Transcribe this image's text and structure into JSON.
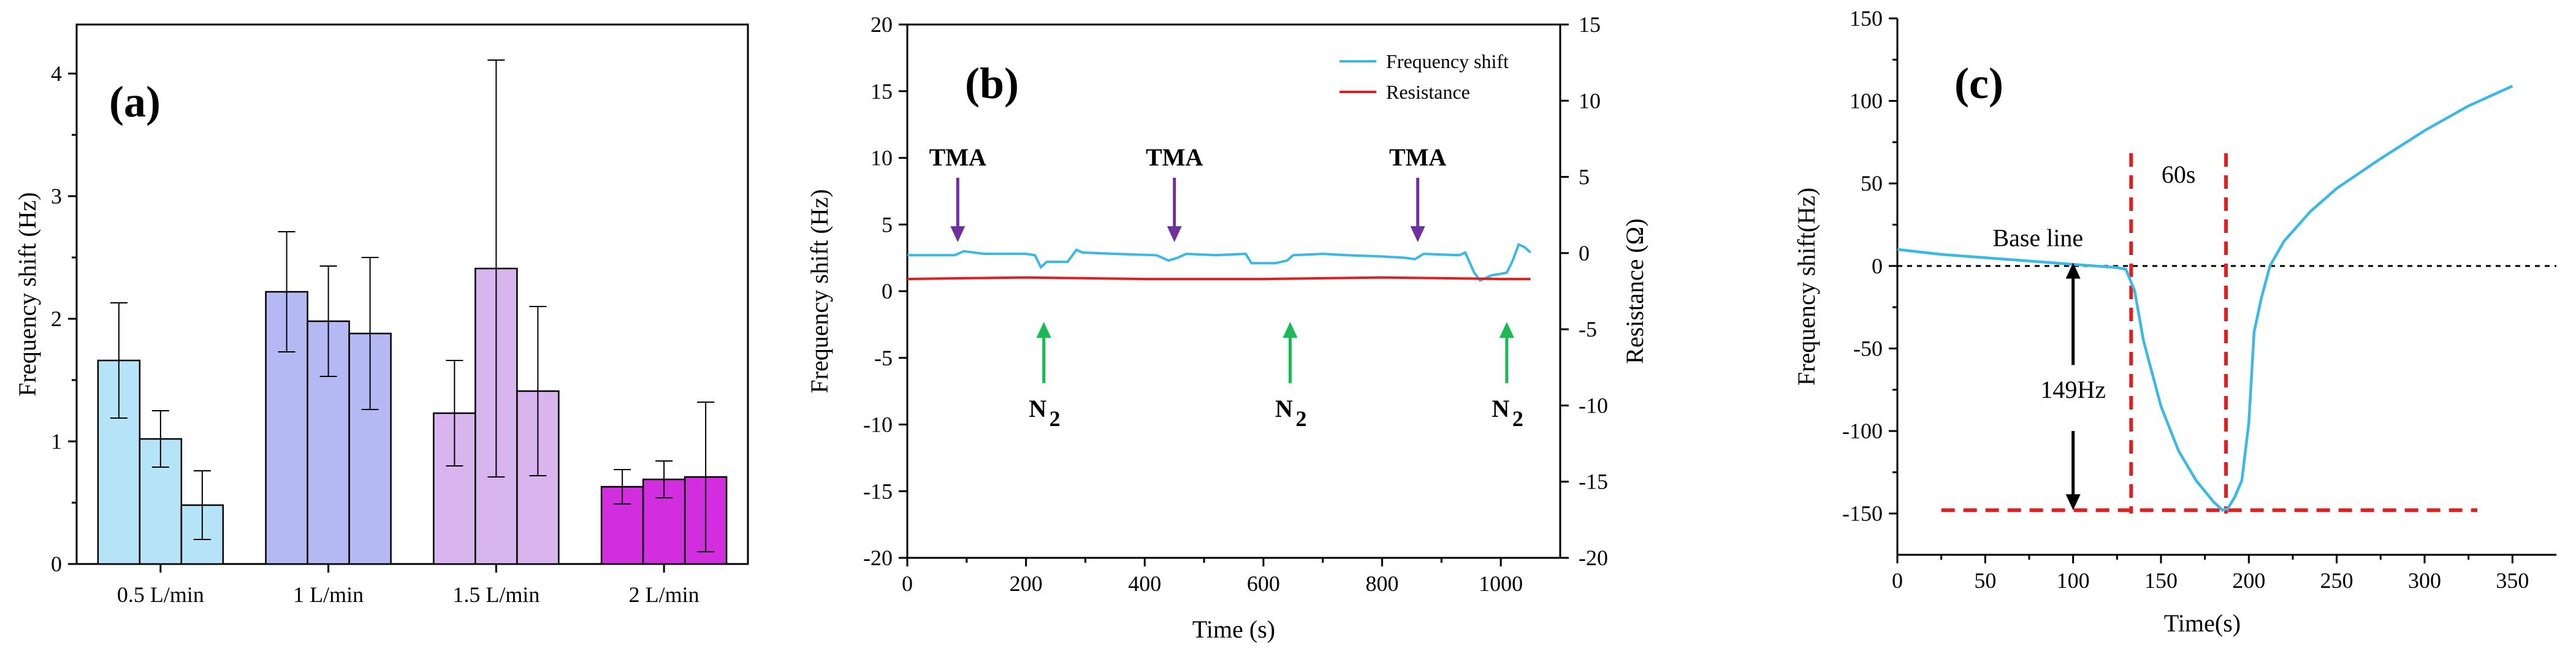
{
  "chart_data": [
    {
      "panel": "a",
      "type": "bar",
      "title": "(a)",
      "xlabel": "",
      "ylabel": "Frequency shift (Hz)",
      "ylim": [
        0,
        4.4
      ],
      "yticks": [
        "0",
        "1",
        "2",
        "3",
        "4"
      ],
      "categories": [
        "0.5 L/min",
        "1 L/min",
        "1.5 L/min",
        "2 L/min"
      ],
      "groups": [
        {
          "category": "0.5 L/min",
          "color": "#b5e3f7",
          "values": [
            1.66,
            1.02,
            0.48
          ],
          "errors": [
            0.47,
            0.23,
            0.28
          ]
        },
        {
          "category": "1 L/min",
          "color": "#b4b9f3",
          "values": [
            2.22,
            1.98,
            1.88
          ],
          "errors": [
            0.49,
            0.45,
            0.62
          ]
        },
        {
          "category": "1.5 L/min",
          "color": "#d9b5f0",
          "values": [
            1.23,
            2.41,
            1.41
          ],
          "errors": [
            0.43,
            1.7,
            0.69
          ]
        },
        {
          "category": "2 L/min",
          "color": "#d22ee0",
          "values": [
            0.63,
            0.69,
            0.71
          ],
          "errors": [
            0.14,
            0.15,
            0.61
          ]
        }
      ]
    },
    {
      "panel": "b",
      "type": "line",
      "title": "(b)",
      "xlabel": "Time (s)",
      "ylabel": "Frequency shift (Hz)",
      "y2label": "Resistance (Ω)",
      "xlim": [
        0,
        1100
      ],
      "ylim": [
        -20,
        20
      ],
      "y2lim": [
        -20,
        15
      ],
      "xticks": [
        "0",
        "200",
        "400",
        "600",
        "800",
        "1000"
      ],
      "yticks": [
        "-20",
        "-15",
        "-10",
        "-5",
        "0",
        "5",
        "10",
        "15",
        "20"
      ],
      "y2ticks": [
        "-20",
        "-15",
        "-10",
        "-5",
        "0",
        "5",
        "10",
        "15"
      ],
      "legend_position": "top-right",
      "series": [
        {
          "name": "Frequency shift",
          "color": "#3ab8e6",
          "x": [
            0,
            80,
            95,
            130,
            200,
            215,
            225,
            235,
            270,
            285,
            295,
            350,
            420,
            440,
            455,
            470,
            520,
            570,
            580,
            600,
            620,
            640,
            650,
            700,
            740,
            800,
            840,
            855,
            870,
            930,
            940,
            955,
            965,
            985,
            1000,
            1010,
            1020,
            1030,
            1040,
            1050
          ],
          "y": [
            2.7,
            2.7,
            3.0,
            2.8,
            2.8,
            2.7,
            1.8,
            2.2,
            2.2,
            3.1,
            2.9,
            2.8,
            2.7,
            2.3,
            2.5,
            2.8,
            2.7,
            2.8,
            2.1,
            2.1,
            2.1,
            2.3,
            2.7,
            2.8,
            2.7,
            2.6,
            2.5,
            2.4,
            2.8,
            2.7,
            2.9,
            1.4,
            0.8,
            1.2,
            1.3,
            1.4,
            2.3,
            3.5,
            3.3,
            2.9
          ]
        },
        {
          "name": "Resistance",
          "color": "#e02020",
          "axis": "right",
          "x": [
            0,
            200,
            400,
            600,
            800,
            1000,
            1050
          ],
          "y": [
            -1.7,
            -1.6,
            -1.7,
            -1.7,
            -1.6,
            -1.7,
            -1.7
          ]
        }
      ],
      "annotations": [
        {
          "text": "TMA",
          "x": 85,
          "kind": "down",
          "color": "#7030a0"
        },
        {
          "text": "TMA",
          "x": 450,
          "kind": "down",
          "color": "#7030a0"
        },
        {
          "text": "TMA",
          "x": 860,
          "kind": "down",
          "color": "#7030a0"
        },
        {
          "text": "N",
          "sub": "2",
          "x": 230,
          "kind": "up",
          "color": "#1db954"
        },
        {
          "text": "N",
          "sub": "2",
          "x": 645,
          "kind": "up",
          "color": "#1db954"
        },
        {
          "text": "N",
          "sub": "2",
          "x": 1010,
          "kind": "up",
          "color": "#1db954"
        }
      ]
    },
    {
      "panel": "c",
      "type": "line",
      "title": "(c)",
      "xlabel": "Time(s)",
      "ylabel": "Frequency shift(Hz)",
      "xlim": [
        0,
        375
      ],
      "ylim": [
        -175,
        150
      ],
      "xticks": [
        "0",
        "50",
        "100",
        "150",
        "200",
        "250",
        "300",
        "350"
      ],
      "yticks": [
        "-150",
        "-100",
        "-50",
        "0",
        "50",
        "100",
        "150"
      ],
      "series": [
        {
          "name": "Frequency shift",
          "color": "#3ab8e6",
          "x": [
            0,
            25,
            50,
            75,
            100,
            125,
            130,
            135,
            140,
            150,
            160,
            170,
            180,
            185,
            188,
            192,
            196,
            200,
            203,
            207,
            212,
            220,
            235,
            250,
            275,
            300,
            325,
            350
          ],
          "y": [
            10,
            7,
            5,
            3,
            1,
            -1,
            -2,
            -15,
            -45,
            -85,
            -112,
            -130,
            -143,
            -148,
            -147,
            -140,
            -130,
            -95,
            -40,
            -20,
            0,
            15,
            33,
            47,
            65,
            82,
            97,
            109
          ]
        }
      ],
      "annotations": [
        {
          "text": "Base line"
        },
        {
          "text": "60s"
        },
        {
          "text": "149Hz"
        }
      ]
    }
  ]
}
